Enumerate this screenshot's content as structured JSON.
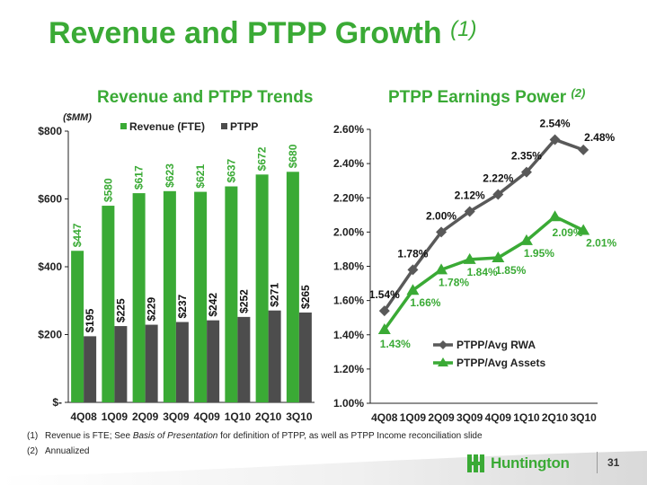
{
  "title": "Revenue and PTPP Growth",
  "title_ref": "(1)",
  "left_subtitle": "Revenue and PTPP Trends",
  "right_subtitle": "PTPP Earnings Power",
  "right_subtitle_ref": "(2)",
  "footnotes": {
    "f1_num": "(1)",
    "f1_a": "Revenue is FTE; See ",
    "f1_b": "Basis of Presentation",
    "f1_c": " for definition of PTPP, as well as PTPP Income reconciliation slide",
    "f2_num": "(2)",
    "f2": "Annualized"
  },
  "logo": {
    "text": "Huntington"
  },
  "page_number": "31",
  "colors": {
    "green": "#3aaa35",
    "gray": "#4d4d4d",
    "line_gray": "#595959"
  },
  "chart_data": [
    {
      "type": "bar",
      "unit_label": "($MM)",
      "categories": [
        "4Q08",
        "1Q09",
        "2Q09",
        "3Q09",
        "4Q09",
        "1Q10",
        "2Q10",
        "3Q10"
      ],
      "series": [
        {
          "name": "Revenue (FTE)",
          "color": "#3aaa35",
          "values": [
            447,
            580,
            617,
            623,
            621,
            637,
            672,
            680
          ],
          "labels": [
            "$447",
            "$580",
            "$617",
            "$623",
            "$621",
            "$637",
            "$672",
            "$680"
          ]
        },
        {
          "name": "PTPP",
          "color": "#4d4d4d",
          "values": [
            195,
            225,
            229,
            237,
            242,
            252,
            271,
            265
          ],
          "labels": [
            "$195",
            "$225",
            "$229",
            "$237",
            "$242",
            "$252",
            "$271",
            "$265"
          ]
        }
      ],
      "ylim": [
        0,
        800
      ],
      "yticks": [
        0,
        200,
        400,
        600,
        800
      ],
      "ytick_labels": [
        "$-",
        "$200",
        "$400",
        "$600",
        "$800"
      ],
      "legend": "top"
    },
    {
      "type": "line",
      "categories": [
        "4Q08",
        "1Q09",
        "2Q09",
        "3Q09",
        "4Q09",
        "1Q10",
        "2Q10",
        "3Q10"
      ],
      "series": [
        {
          "name": "PTPP/Avg RWA",
          "color": "#595959",
          "marker": "diamond",
          "values": [
            1.54,
            1.78,
            2.0,
            2.12,
            2.22,
            2.35,
            2.54,
            2.48
          ],
          "labels": [
            "1.54%",
            "1.78%",
            "2.00%",
            "2.12%",
            "2.22%",
            "2.35%",
            "2.54%",
            "2.48%"
          ]
        },
        {
          "name": "PTPP/Avg Assets",
          "color": "#3aaa35",
          "marker": "triangle",
          "values": [
            1.43,
            1.66,
            1.78,
            1.84,
            1.85,
            1.95,
            2.09,
            2.01
          ],
          "labels": [
            "1.43%",
            "1.66%",
            "1.78%",
            "1.84%",
            "1.85%",
            "1.95%",
            "2.09%",
            "2.01%"
          ]
        }
      ],
      "ylim": [
        1.0,
        2.6
      ],
      "yticks": [
        1.0,
        1.2,
        1.4,
        1.6,
        1.8,
        2.0,
        2.2,
        2.4,
        2.6
      ],
      "ytick_labels": [
        "1.00%",
        "1.20%",
        "1.40%",
        "1.60%",
        "1.80%",
        "2.00%",
        "2.20%",
        "2.40%",
        "2.60%"
      ],
      "legend": "bottom-right"
    }
  ]
}
